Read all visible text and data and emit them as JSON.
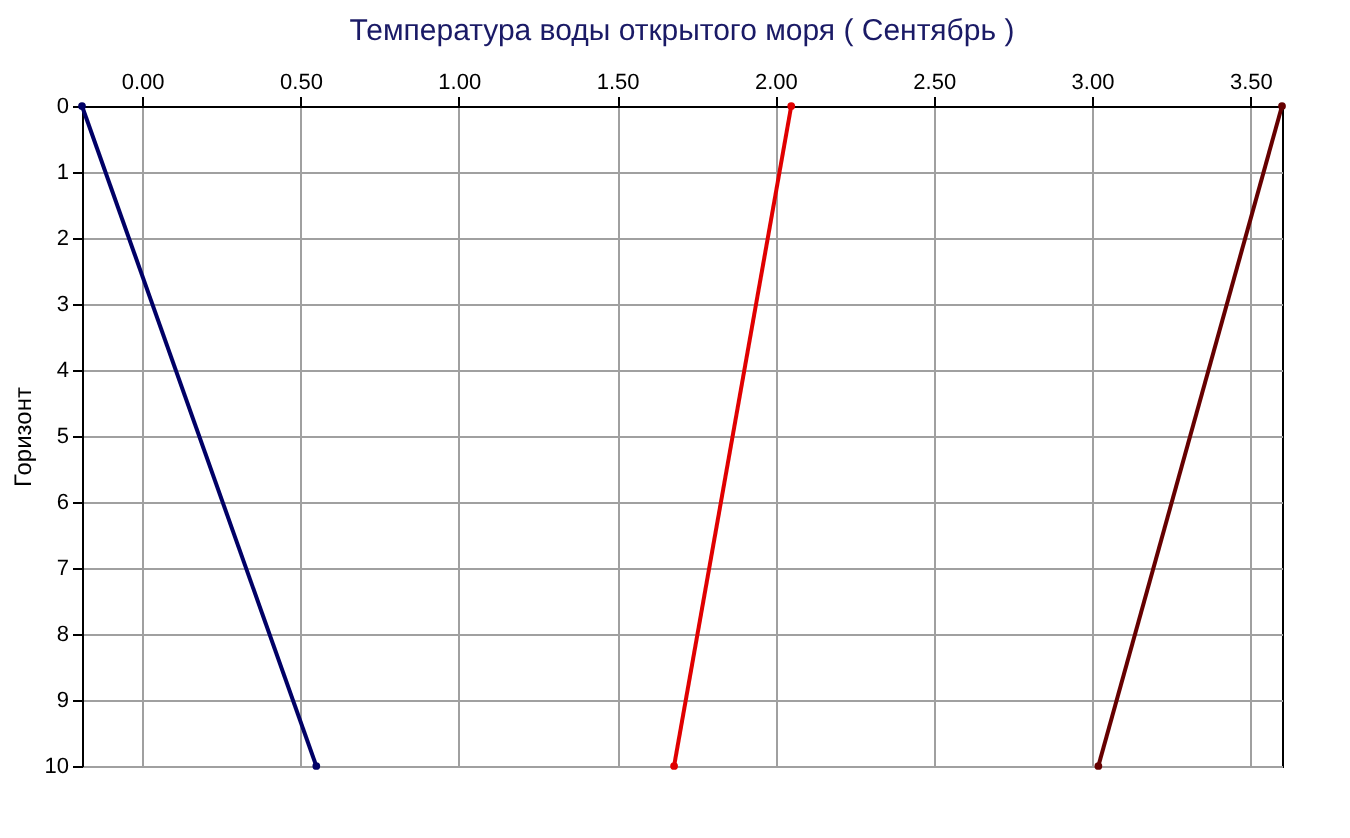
{
  "chart_data": {
    "type": "line",
    "title": "Температура воды открытого моря    ( Сентябрь )",
    "ylabel": "Горизонт",
    "xlim": [
      -0.19,
      3.6
    ],
    "xticks": [
      {
        "value": 0,
        "label": "0.00"
      },
      {
        "value": 0.5,
        "label": "0.50"
      },
      {
        "value": 1,
        "label": "1.00"
      },
      {
        "value": 1.5,
        "label": "1.50"
      },
      {
        "value": 2,
        "label": "2.00"
      },
      {
        "value": 2.5,
        "label": "2.50"
      },
      {
        "value": 3,
        "label": "3.00"
      },
      {
        "value": 3.5,
        "label": "3.50"
      }
    ],
    "ylim": [
      10,
      0
    ],
    "yticks": [
      0,
      1,
      2,
      3,
      4,
      5,
      6,
      7,
      8,
      9,
      10
    ],
    "grid": true,
    "marker": "circle",
    "line_style": "solid",
    "series": [
      {
        "color": "#000066",
        "x": [
          -0.19,
          0.55
        ],
        "values": [
          0,
          10
        ]
      },
      {
        "color": "#e00000",
        "x": [
          2.05,
          1.68
        ],
        "values": [
          0,
          10
        ]
      },
      {
        "color": "#660000",
        "x": [
          3.6,
          3.02
        ],
        "values": [
          0,
          10
        ]
      }
    ]
  }
}
